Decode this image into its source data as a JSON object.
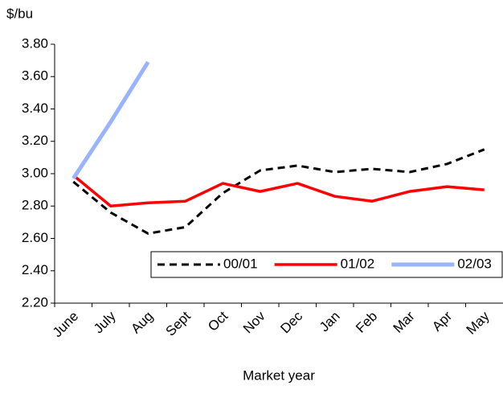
{
  "chart_data": {
    "type": "line",
    "y_label": "$/bu",
    "x_label": "Market year",
    "categories": [
      "June",
      "July",
      "Aug",
      "Sept",
      "Oct",
      "Nov",
      "Dec",
      "Jan",
      "Feb",
      "Mar",
      "Apr",
      "May"
    ],
    "series": [
      {
        "name": "00/01",
        "color": "#000000",
        "dashed": true,
        "width": 3,
        "values": [
          2.95,
          2.76,
          2.63,
          2.67,
          2.88,
          3.02,
          3.05,
          3.01,
          3.03,
          3.01,
          3.06,
          3.15
        ]
      },
      {
        "name": "01/02",
        "color": "#ff0000",
        "dashed": false,
        "width": 3.5,
        "values": [
          2.99,
          2.8,
          2.82,
          2.83,
          2.94,
          2.89,
          2.94,
          2.86,
          2.83,
          2.89,
          2.92,
          2.9
        ]
      },
      {
        "name": "02/03",
        "color": "#99b3ff",
        "dashed": false,
        "width": 5,
        "values": [
          2.97,
          3.32,
          3.69,
          null,
          null,
          null,
          null,
          null,
          null,
          null,
          null,
          null
        ]
      }
    ],
    "ylim": [
      2.2,
      3.8
    ],
    "yticks": [
      {
        "value": 2.2,
        "label": "2.20"
      },
      {
        "value": 2.4,
        "label": "2.40"
      },
      {
        "value": 2.6,
        "label": "2.60"
      },
      {
        "value": 2.8,
        "label": "2.80"
      },
      {
        "value": 3.0,
        "label": "3.00"
      },
      {
        "value": 3.2,
        "label": "3.20"
      },
      {
        "value": 3.4,
        "label": "3.40"
      },
      {
        "value": 3.6,
        "label": "3.60"
      },
      {
        "value": 3.8,
        "label": "3.80"
      }
    ],
    "grid": false,
    "legend": "bottom-right"
  }
}
